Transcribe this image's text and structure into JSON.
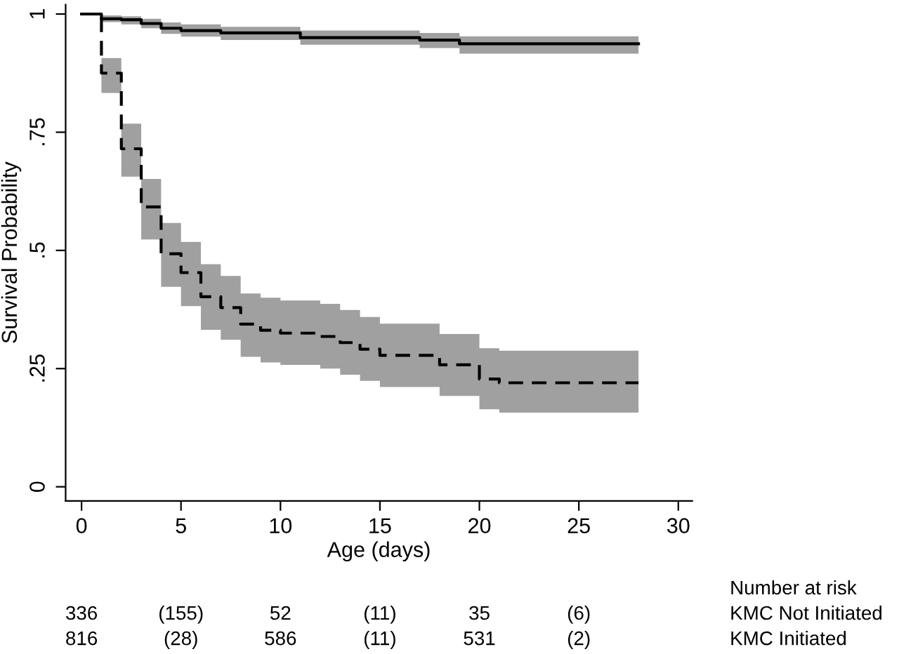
{
  "chart_data": {
    "type": "step",
    "xlabel": "Age (days)",
    "ylabel": "Survival Probability",
    "xlim": [
      -0.8,
      30.7
    ],
    "xticks": [
      0,
      5,
      10,
      15,
      20,
      25,
      30
    ],
    "ylim": [
      -0.03,
      1.02
    ],
    "yticks": [
      0,
      {
        "value": 0.25,
        "label": ".25"
      },
      {
        "value": 0.5,
        "label": ".5"
      },
      {
        "value": 0.75,
        "label": ".75"
      },
      1
    ],
    "grid": false,
    "series": [
      {
        "name": "KMC Not Initiated",
        "color": "#000000",
        "line_style": "solid",
        "x": [
          0,
          1,
          2,
          3,
          4,
          5,
          7,
          11,
          17,
          19,
          28
        ],
        "values": [
          1.0,
          0.99,
          0.988,
          0.98,
          0.97,
          0.965,
          0.96,
          0.95,
          0.945,
          0.937,
          0.937
        ],
        "lower": [
          1.0,
          0.983,
          0.978,
          0.97,
          0.958,
          0.952,
          0.945,
          0.935,
          0.928,
          0.916,
          0.911
        ],
        "upper": [
          1.0,
          0.997,
          0.995,
          0.99,
          0.982,
          0.978,
          0.973,
          0.965,
          0.96,
          0.953,
          0.951
        ]
      },
      {
        "name": "KMC Initiated",
        "color": "#000000",
        "line_style": "dashed",
        "x": [
          0,
          1,
          2,
          3,
          4,
          5,
          6,
          7,
          8,
          9,
          10,
          12,
          13,
          14,
          15,
          18,
          20,
          21,
          28
        ],
        "values": [
          1.0,
          0.875,
          0.715,
          0.592,
          0.493,
          0.453,
          0.402,
          0.379,
          0.344,
          0.331,
          0.325,
          0.318,
          0.305,
          0.291,
          0.278,
          0.258,
          0.228,
          0.22,
          0.22
        ],
        "lower": [
          1.0,
          0.833,
          0.656,
          0.523,
          0.423,
          0.382,
          0.332,
          0.311,
          0.275,
          0.263,
          0.258,
          0.25,
          0.237,
          0.224,
          0.211,
          0.192,
          0.164,
          0.157,
          0.157
        ],
        "upper": [
          1.0,
          0.907,
          0.768,
          0.651,
          0.558,
          0.518,
          0.471,
          0.446,
          0.409,
          0.4,
          0.394,
          0.387,
          0.374,
          0.359,
          0.345,
          0.323,
          0.293,
          0.288,
          0.288
        ]
      }
    ],
    "annotations": [
      "Number at risk",
      "336",
      "(155)",
      "52",
      "(11)",
      "35",
      "(6)",
      "816",
      "(28)",
      "586",
      "(11)",
      "531",
      "(2)"
    ]
  }
}
